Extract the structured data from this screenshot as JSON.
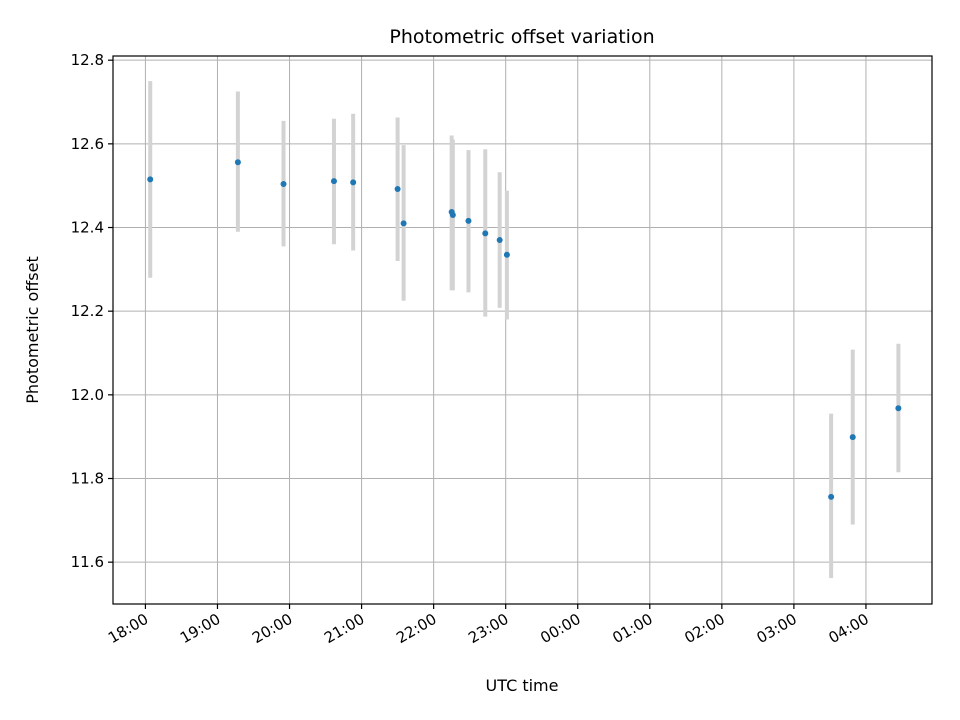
{
  "chart_data": {
    "type": "scatter",
    "title": "Photometric offset variation",
    "xlabel": "UTC time",
    "ylabel": "Photometric offset",
    "grid": true,
    "legend": "none",
    "x_axis": {
      "unit": "UTC time",
      "range": [
        "17:33",
        "04:55 (+1 day)"
      ],
      "ticks": [
        "18:00",
        "19:00",
        "20:00",
        "21:00",
        "22:00",
        "23:00",
        "00:00",
        "01:00",
        "02:00",
        "03:00",
        "04:00"
      ]
    },
    "y_axis": {
      "range": [
        11.5,
        12.81
      ],
      "ticks": [
        "11.6",
        "11.8",
        "12.0",
        "12.2",
        "12.4",
        "12.6",
        "12.8"
      ]
    },
    "colors": {
      "point": "#1f77b4",
      "errorbar": "#d3d3d3",
      "grid": "#b0b0b0"
    },
    "points": [
      {
        "x": "18:04",
        "y": 12.515,
        "y_low": 12.28,
        "y_high": 12.75
      },
      {
        "x": "19:17",
        "y": 12.556,
        "y_low": 12.39,
        "y_high": 12.725
      },
      {
        "x": "19:55",
        "y": 12.504,
        "y_low": 12.355,
        "y_high": 12.655
      },
      {
        "x": "20:37",
        "y": 12.511,
        "y_low": 12.36,
        "y_high": 12.66
      },
      {
        "x": "20:53",
        "y": 12.508,
        "y_low": 12.345,
        "y_high": 12.672
      },
      {
        "x": "21:30",
        "y": 12.492,
        "y_low": 12.32,
        "y_high": 12.663
      },
      {
        "x": "21:35",
        "y": 12.41,
        "y_low": 12.225,
        "y_high": 12.597
      },
      {
        "x": "22:15",
        "y": 12.437,
        "y_low": 12.25,
        "y_high": 12.62
      },
      {
        "x": "22:16",
        "y": 12.43,
        "y_low": 12.25,
        "y_high": 12.61
      },
      {
        "x": "22:29",
        "y": 12.416,
        "y_low": 12.245,
        "y_high": 12.585
      },
      {
        "x": "22:43",
        "y": 12.386,
        "y_low": 12.187,
        "y_high": 12.587
      },
      {
        "x": "22:55",
        "y": 12.37,
        "y_low": 12.208,
        "y_high": 12.532
      },
      {
        "x": "23:01",
        "y": 12.335,
        "y_low": 12.18,
        "y_high": 12.488
      },
      {
        "x": "03:31 (+1 day)",
        "y": 11.756,
        "y_low": 11.562,
        "y_high": 11.955
      },
      {
        "x": "03:49 (+1 day)",
        "y": 11.899,
        "y_low": 11.69,
        "y_high": 12.108
      },
      {
        "x": "04:27 (+1 day)",
        "y": 11.968,
        "y_low": 11.815,
        "y_high": 12.122
      }
    ]
  }
}
